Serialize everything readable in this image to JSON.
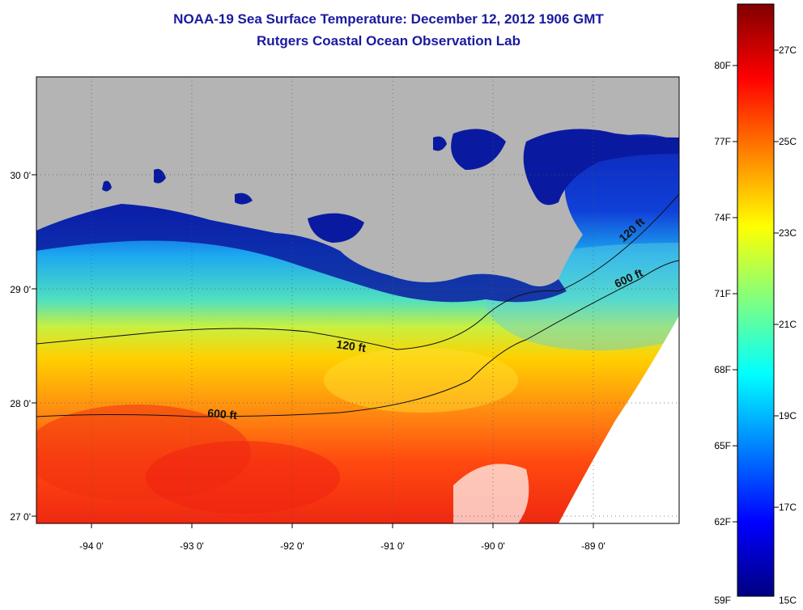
{
  "title": "NOAA-19 Sea Surface Temperature:  December 12, 2012 1906 GMT",
  "subtitle": "Rutgers Coastal Ocean Observation Lab",
  "lat_labels": [
    "30 0'",
    "29 0'",
    "28 0'",
    "27 0'"
  ],
  "lon_labels": [
    "-94 0'",
    "-93 0'",
    "-92 0'",
    "-91 0'",
    "-90 0'",
    "-89 0'"
  ],
  "contours": [
    {
      "label": "120 ft"
    },
    {
      "label": "600 ft"
    },
    {
      "label": "600 ft"
    },
    {
      "label": "120 ft"
    }
  ],
  "colorbar": {
    "f_labels": [
      "80F",
      "77F",
      "74F",
      "71F",
      "68F",
      "65F",
      "62F",
      "59F"
    ],
    "c_labels": [
      "27C",
      "25C",
      "23C",
      "21C",
      "19C",
      "17C",
      "15C"
    ],
    "colors": [
      "#000080",
      "#0000ff",
      "#0080ff",
      "#00ffff",
      "#80ff80",
      "#ffff00",
      "#ff8000",
      "#ff0000",
      "#800000"
    ]
  },
  "colors": {
    "land": "#b4b4b4",
    "title": "#1a1aa0",
    "cold_nearshore": "#0a1aa0"
  }
}
